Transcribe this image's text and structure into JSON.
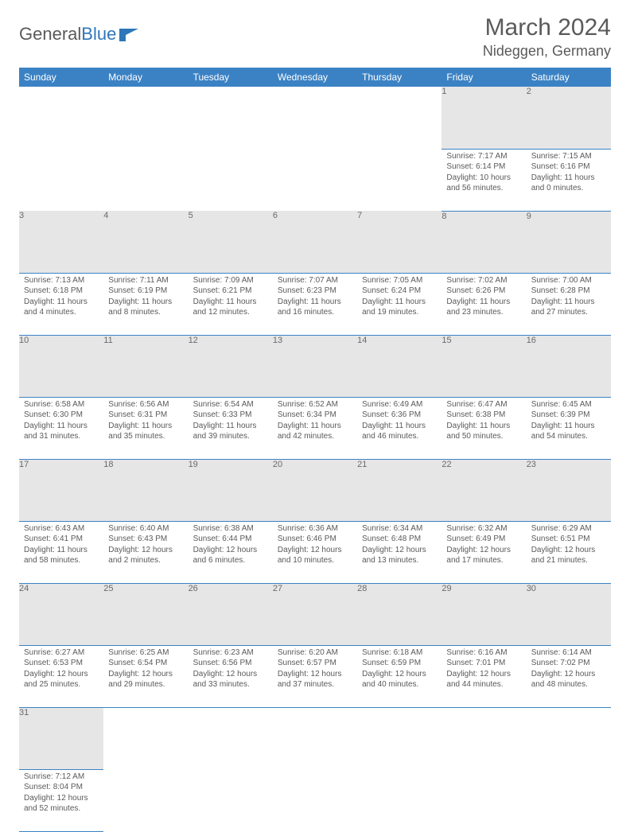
{
  "logo": {
    "text1": "General",
    "text2": "Blue"
  },
  "title": "March 2024",
  "location": "Nideggen, Germany",
  "colors": {
    "header_bg": "#3b82c4",
    "header_fg": "#ffffff",
    "daynum_bg": "#e6e6e6",
    "border": "#3b82c4",
    "text": "#5a5a5a"
  },
  "weekdays": [
    "Sunday",
    "Monday",
    "Tuesday",
    "Wednesday",
    "Thursday",
    "Friday",
    "Saturday"
  ],
  "weeks": [
    [
      null,
      null,
      null,
      null,
      null,
      {
        "n": "1",
        "sr": "Sunrise: 7:17 AM",
        "ss": "Sunset: 6:14 PM",
        "dl": "Daylight: 10 hours and 56 minutes."
      },
      {
        "n": "2",
        "sr": "Sunrise: 7:15 AM",
        "ss": "Sunset: 6:16 PM",
        "dl": "Daylight: 11 hours and 0 minutes."
      }
    ],
    [
      {
        "n": "3",
        "sr": "Sunrise: 7:13 AM",
        "ss": "Sunset: 6:18 PM",
        "dl": "Daylight: 11 hours and 4 minutes."
      },
      {
        "n": "4",
        "sr": "Sunrise: 7:11 AM",
        "ss": "Sunset: 6:19 PM",
        "dl": "Daylight: 11 hours and 8 minutes."
      },
      {
        "n": "5",
        "sr": "Sunrise: 7:09 AM",
        "ss": "Sunset: 6:21 PM",
        "dl": "Daylight: 11 hours and 12 minutes."
      },
      {
        "n": "6",
        "sr": "Sunrise: 7:07 AM",
        "ss": "Sunset: 6:23 PM",
        "dl": "Daylight: 11 hours and 16 minutes."
      },
      {
        "n": "7",
        "sr": "Sunrise: 7:05 AM",
        "ss": "Sunset: 6:24 PM",
        "dl": "Daylight: 11 hours and 19 minutes."
      },
      {
        "n": "8",
        "sr": "Sunrise: 7:02 AM",
        "ss": "Sunset: 6:26 PM",
        "dl": "Daylight: 11 hours and 23 minutes."
      },
      {
        "n": "9",
        "sr": "Sunrise: 7:00 AM",
        "ss": "Sunset: 6:28 PM",
        "dl": "Daylight: 11 hours and 27 minutes."
      }
    ],
    [
      {
        "n": "10",
        "sr": "Sunrise: 6:58 AM",
        "ss": "Sunset: 6:30 PM",
        "dl": "Daylight: 11 hours and 31 minutes."
      },
      {
        "n": "11",
        "sr": "Sunrise: 6:56 AM",
        "ss": "Sunset: 6:31 PM",
        "dl": "Daylight: 11 hours and 35 minutes."
      },
      {
        "n": "12",
        "sr": "Sunrise: 6:54 AM",
        "ss": "Sunset: 6:33 PM",
        "dl": "Daylight: 11 hours and 39 minutes."
      },
      {
        "n": "13",
        "sr": "Sunrise: 6:52 AM",
        "ss": "Sunset: 6:34 PM",
        "dl": "Daylight: 11 hours and 42 minutes."
      },
      {
        "n": "14",
        "sr": "Sunrise: 6:49 AM",
        "ss": "Sunset: 6:36 PM",
        "dl": "Daylight: 11 hours and 46 minutes."
      },
      {
        "n": "15",
        "sr": "Sunrise: 6:47 AM",
        "ss": "Sunset: 6:38 PM",
        "dl": "Daylight: 11 hours and 50 minutes."
      },
      {
        "n": "16",
        "sr": "Sunrise: 6:45 AM",
        "ss": "Sunset: 6:39 PM",
        "dl": "Daylight: 11 hours and 54 minutes."
      }
    ],
    [
      {
        "n": "17",
        "sr": "Sunrise: 6:43 AM",
        "ss": "Sunset: 6:41 PM",
        "dl": "Daylight: 11 hours and 58 minutes."
      },
      {
        "n": "18",
        "sr": "Sunrise: 6:40 AM",
        "ss": "Sunset: 6:43 PM",
        "dl": "Daylight: 12 hours and 2 minutes."
      },
      {
        "n": "19",
        "sr": "Sunrise: 6:38 AM",
        "ss": "Sunset: 6:44 PM",
        "dl": "Daylight: 12 hours and 6 minutes."
      },
      {
        "n": "20",
        "sr": "Sunrise: 6:36 AM",
        "ss": "Sunset: 6:46 PM",
        "dl": "Daylight: 12 hours and 10 minutes."
      },
      {
        "n": "21",
        "sr": "Sunrise: 6:34 AM",
        "ss": "Sunset: 6:48 PM",
        "dl": "Daylight: 12 hours and 13 minutes."
      },
      {
        "n": "22",
        "sr": "Sunrise: 6:32 AM",
        "ss": "Sunset: 6:49 PM",
        "dl": "Daylight: 12 hours and 17 minutes."
      },
      {
        "n": "23",
        "sr": "Sunrise: 6:29 AM",
        "ss": "Sunset: 6:51 PM",
        "dl": "Daylight: 12 hours and 21 minutes."
      }
    ],
    [
      {
        "n": "24",
        "sr": "Sunrise: 6:27 AM",
        "ss": "Sunset: 6:53 PM",
        "dl": "Daylight: 12 hours and 25 minutes."
      },
      {
        "n": "25",
        "sr": "Sunrise: 6:25 AM",
        "ss": "Sunset: 6:54 PM",
        "dl": "Daylight: 12 hours and 29 minutes."
      },
      {
        "n": "26",
        "sr": "Sunrise: 6:23 AM",
        "ss": "Sunset: 6:56 PM",
        "dl": "Daylight: 12 hours and 33 minutes."
      },
      {
        "n": "27",
        "sr": "Sunrise: 6:20 AM",
        "ss": "Sunset: 6:57 PM",
        "dl": "Daylight: 12 hours and 37 minutes."
      },
      {
        "n": "28",
        "sr": "Sunrise: 6:18 AM",
        "ss": "Sunset: 6:59 PM",
        "dl": "Daylight: 12 hours and 40 minutes."
      },
      {
        "n": "29",
        "sr": "Sunrise: 6:16 AM",
        "ss": "Sunset: 7:01 PM",
        "dl": "Daylight: 12 hours and 44 minutes."
      },
      {
        "n": "30",
        "sr": "Sunrise: 6:14 AM",
        "ss": "Sunset: 7:02 PM",
        "dl": "Daylight: 12 hours and 48 minutes."
      }
    ],
    [
      {
        "n": "31",
        "sr": "Sunrise: 7:12 AM",
        "ss": "Sunset: 8:04 PM",
        "dl": "Daylight: 12 hours and 52 minutes."
      },
      null,
      null,
      null,
      null,
      null,
      null
    ]
  ]
}
